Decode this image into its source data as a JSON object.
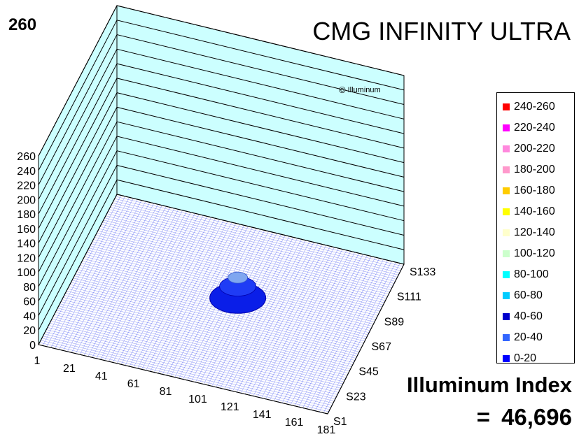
{
  "header": {
    "max_value": "260",
    "title": "CMG INFINITY ULTRA",
    "brand": "Illuminum",
    "brand_symbol": "©"
  },
  "footer": {
    "index_label": "Illuminum Index",
    "index_eq": "=",
    "index_value": "46,696"
  },
  "chart_data": {
    "type": "surface3d",
    "z_ticks": [
      "0",
      "20",
      "40",
      "60",
      "80",
      "100",
      "120",
      "140",
      "160",
      "180",
      "200",
      "220",
      "240",
      "260"
    ],
    "zlim": [
      0,
      260
    ],
    "x_ticks": [
      "1",
      "21",
      "41",
      "61",
      "81",
      "101",
      "121",
      "141",
      "161",
      "181"
    ],
    "y_ticks": [
      "S1",
      "S23",
      "S45",
      "S67",
      "S89",
      "S111",
      "S133"
    ],
    "peak": {
      "x": 101,
      "y": 67,
      "value": 40
    },
    "legend": [
      {
        "label": "240-260",
        "color": "#ff0000"
      },
      {
        "label": "220-240",
        "color": "#ff00ff"
      },
      {
        "label": "200-220",
        "color": "#ff88dd"
      },
      {
        "label": "180-200",
        "color": "#ff99cc"
      },
      {
        "label": "160-180",
        "color": "#ffcc00"
      },
      {
        "label": "140-160",
        "color": "#ffff00"
      },
      {
        "label": "120-140",
        "color": "#ffffcc"
      },
      {
        "label": "100-120",
        "color": "#ccffcc"
      },
      {
        "label": "80-100",
        "color": "#00ffff"
      },
      {
        "label": "60-80",
        "color": "#00ccff"
      },
      {
        "label": "40-60",
        "color": "#0000cc"
      },
      {
        "label": "20-40",
        "color": "#3366ff"
      },
      {
        "label": "0-20",
        "color": "#0000ff"
      }
    ],
    "wall_color": "#ccffff",
    "grid": true
  }
}
